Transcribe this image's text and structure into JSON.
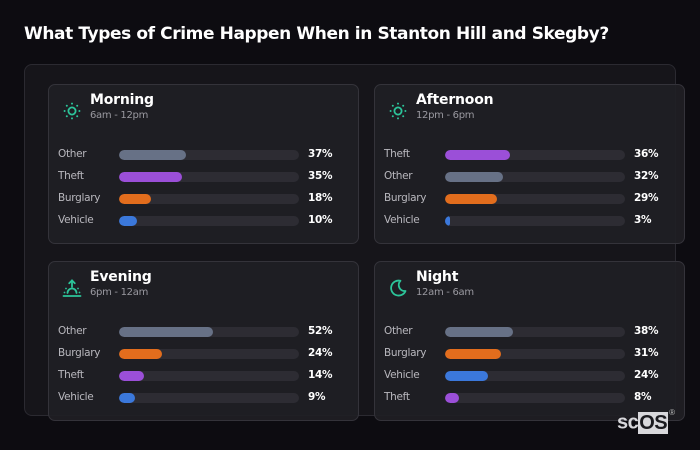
{
  "title": "What Types of Crime Happen When in Stanton Hill and Skegby?",
  "colors": {
    "Other": "#677186",
    "Theft": "#9b4fd8",
    "Burglary": "#e26d1d",
    "Vehicle": "#3b78db",
    "icon": "#2cc59a"
  },
  "cards": [
    {
      "name": "Morning",
      "range": "6am - 12pm",
      "icon": "sun-icon",
      "rows": [
        {
          "label": "Other",
          "value": 37,
          "pct": "37%"
        },
        {
          "label": "Theft",
          "value": 35,
          "pct": "35%"
        },
        {
          "label": "Burglary",
          "value": 18,
          "pct": "18%"
        },
        {
          "label": "Vehicle",
          "value": 10,
          "pct": "10%"
        }
      ]
    },
    {
      "name": "Afternoon",
      "range": "12pm - 6pm",
      "icon": "sun-icon",
      "rows": [
        {
          "label": "Theft",
          "value": 36,
          "pct": "36%"
        },
        {
          "label": "Other",
          "value": 32,
          "pct": "32%"
        },
        {
          "label": "Burglary",
          "value": 29,
          "pct": "29%"
        },
        {
          "label": "Vehicle",
          "value": 3,
          "pct": "3%"
        }
      ]
    },
    {
      "name": "Evening",
      "range": "6pm - 12am",
      "icon": "sunset-icon",
      "rows": [
        {
          "label": "Other",
          "value": 52,
          "pct": "52%"
        },
        {
          "label": "Burglary",
          "value": 24,
          "pct": "24%"
        },
        {
          "label": "Theft",
          "value": 14,
          "pct": "14%"
        },
        {
          "label": "Vehicle",
          "value": 9,
          "pct": "9%"
        }
      ]
    },
    {
      "name": "Night",
      "range": "12am - 6am",
      "icon": "moon-icon",
      "rows": [
        {
          "label": "Other",
          "value": 38,
          "pct": "38%"
        },
        {
          "label": "Burglary",
          "value": 31,
          "pct": "31%"
        },
        {
          "label": "Vehicle",
          "value": 24,
          "pct": "24%"
        },
        {
          "label": "Theft",
          "value": 8,
          "pct": "8%"
        }
      ]
    }
  ],
  "logo": {
    "sc": "sc",
    "os": "OS",
    "mark": "®"
  },
  "chart_data": {
    "type": "bar",
    "title": "What Types of Crime Happen When in Stanton Hill and Skegby?",
    "orientation": "horizontal",
    "xlabel": "",
    "ylabel": "",
    "xlim": [
      0,
      100
    ],
    "unit": "%",
    "panels": [
      {
        "title": "Morning",
        "subtitle": "6am - 12pm",
        "categories": [
          "Other",
          "Theft",
          "Burglary",
          "Vehicle"
        ],
        "values": [
          37,
          35,
          18,
          10
        ]
      },
      {
        "title": "Afternoon",
        "subtitle": "12pm - 6pm",
        "categories": [
          "Theft",
          "Other",
          "Burglary",
          "Vehicle"
        ],
        "values": [
          36,
          32,
          29,
          3
        ]
      },
      {
        "title": "Evening",
        "subtitle": "6pm - 12am",
        "categories": [
          "Other",
          "Burglary",
          "Theft",
          "Vehicle"
        ],
        "values": [
          52,
          24,
          14,
          9
        ]
      },
      {
        "title": "Night",
        "subtitle": "12am - 6am",
        "categories": [
          "Other",
          "Burglary",
          "Vehicle",
          "Theft"
        ],
        "values": [
          38,
          31,
          24,
          8
        ]
      }
    ],
    "series_colors": {
      "Other": "#677186",
      "Theft": "#9b4fd8",
      "Burglary": "#e26d1d",
      "Vehicle": "#3b78db"
    },
    "grid": false,
    "legend": "none"
  }
}
